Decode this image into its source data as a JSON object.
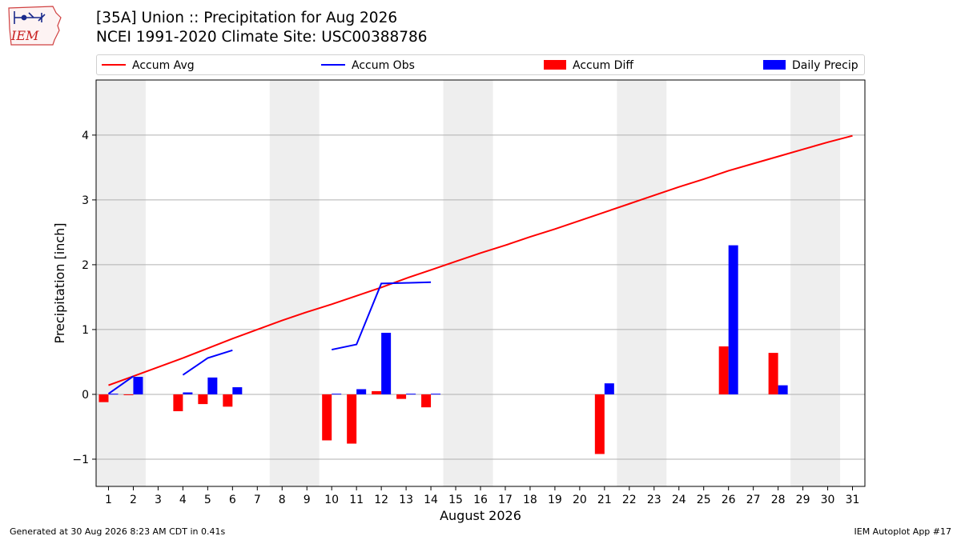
{
  "header": {
    "logo_text": "IEM",
    "title_line1": "[35A] Union :: Precipitation for Aug 2026",
    "title_line2": "NCEI 1991-2020 Climate Site: USC00388786"
  },
  "legend": {
    "accum_avg": "Accum Avg",
    "accum_obs": "Accum Obs",
    "accum_diff": "Accum Diff",
    "daily_precip": "Daily Precip"
  },
  "footer": {
    "generated": "Generated at 30 Aug 2026 8:23 AM CDT in 0.41s",
    "app": "IEM Autoplot App #17"
  },
  "colors": {
    "accum_avg": "#ff0000",
    "accum_obs": "#0000ff",
    "accum_diff": "#ff0000",
    "daily_precip": "#0000ff",
    "weekend_shade": "#eeeeee",
    "grid": "#b0b0b0"
  },
  "chart_data": {
    "type": "bar",
    "title": "[35A] Union :: Precipitation for Aug 2026",
    "subtitle": "NCEI 1991-2020 Climate Site: USC00388786",
    "xlabel": "August 2026",
    "ylabel": "Precipitation [inch]",
    "xlim": [
      0.5,
      31.5
    ],
    "ylim": [
      -1.42,
      4.85
    ],
    "yticks": [
      -1,
      0,
      1,
      2,
      3,
      4
    ],
    "ytick_labels": [
      "−1",
      "0",
      "1",
      "2",
      "3",
      "4"
    ],
    "xticks": [
      1,
      2,
      3,
      4,
      5,
      6,
      7,
      8,
      9,
      10,
      11,
      12,
      13,
      14,
      15,
      16,
      17,
      18,
      19,
      20,
      21,
      22,
      23,
      24,
      25,
      26,
      27,
      28,
      29,
      30,
      31
    ],
    "grid": "horizontal",
    "legend_position": "top",
    "weekend_spans": [
      [
        0.5,
        2.5
      ],
      [
        7.5,
        9.5
      ],
      [
        14.5,
        16.5
      ],
      [
        21.5,
        23.5
      ],
      [
        28.5,
        30.5
      ]
    ],
    "series": [
      {
        "name": "Accum Avg",
        "kind": "line",
        "x": [
          1,
          2,
          3,
          4,
          5,
          6,
          7,
          8,
          9,
          10,
          11,
          12,
          13,
          14,
          15,
          16,
          17,
          18,
          19,
          20,
          21,
          22,
          23,
          24,
          25,
          26,
          27,
          28,
          29,
          30,
          31
        ],
        "values": [
          0.14,
          0.28,
          0.42,
          0.56,
          0.71,
          0.86,
          1.0,
          1.14,
          1.27,
          1.39,
          1.52,
          1.65,
          1.79,
          1.92,
          2.05,
          2.18,
          2.3,
          2.43,
          2.55,
          2.68,
          2.81,
          2.94,
          3.07,
          3.2,
          3.32,
          3.45,
          3.56,
          3.67,
          3.78,
          3.89,
          3.99
        ]
      },
      {
        "name": "Accum Obs",
        "kind": "line",
        "segments": [
          {
            "x": [
              1,
              2
            ],
            "values": [
              0.01,
              0.28
            ]
          },
          {
            "x": [
              4,
              5,
              6
            ],
            "values": [
              0.3,
              0.56,
              0.68
            ]
          },
          {
            "x": [
              10,
              11,
              12,
              13,
              14
            ],
            "values": [
              0.69,
              0.77,
              1.71,
              1.72,
              1.73
            ]
          }
        ]
      },
      {
        "name": "Accum Diff",
        "kind": "bar",
        "x": [
          1,
          2,
          4,
          5,
          6,
          10,
          11,
          12,
          13,
          14,
          21,
          26,
          28
        ],
        "values": [
          -0.12,
          -0.01,
          -0.26,
          -0.15,
          -0.19,
          -0.71,
          -0.76,
          0.05,
          -0.07,
          -0.2,
          -0.92,
          0.74,
          0.64
        ]
      },
      {
        "name": "Daily Precip",
        "kind": "bar",
        "x": [
          1,
          2,
          4,
          5,
          6,
          10,
          11,
          12,
          13,
          14,
          21,
          26,
          28
        ],
        "values": [
          0.01,
          0.27,
          0.03,
          0.26,
          0.11,
          0.01,
          0.08,
          0.95,
          0.01,
          0.01,
          0.17,
          2.3,
          0.14
        ]
      }
    ]
  }
}
